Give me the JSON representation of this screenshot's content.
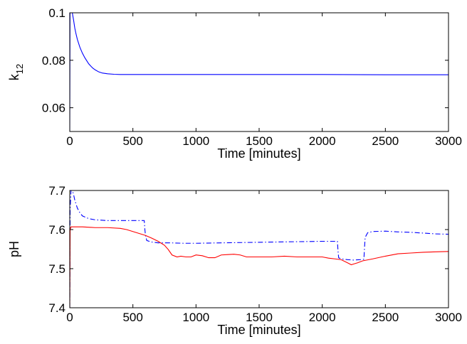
{
  "chart_data": [
    {
      "type": "line",
      "xlabel": "Time [minutes]",
      "ylabel": "k",
      "ylabel_sub": "12",
      "xlim": [
        0,
        3000
      ],
      "ylim": [
        0.05,
        0.1
      ],
      "xticks": [
        0,
        500,
        1000,
        1500,
        2000,
        2500,
        3000
      ],
      "xtick_labels": [
        "0",
        "500",
        "1000",
        "1500",
        "2000",
        "2500",
        "3000"
      ],
      "yticks": [
        0.06,
        0.08,
        0.1
      ],
      "ytick_labels": [
        "0.06",
        "0.08",
        "0.1"
      ],
      "grid": false,
      "series": [
        {
          "color": "#0000ff",
          "style": "solid",
          "x": [
            0,
            2,
            5,
            10,
            20,
            30,
            40,
            50,
            60,
            80,
            100,
            120,
            150,
            180,
            200,
            230,
            260,
            300,
            350,
            400,
            500,
            1000,
            1500,
            2000,
            2500,
            3000
          ],
          "y": [
            0.05,
            0.1,
            0.1,
            0.1,
            0.1,
            0.097,
            0.0935,
            0.091,
            0.0888,
            0.0855,
            0.083,
            0.081,
            0.0785,
            0.0768,
            0.076,
            0.0751,
            0.0746,
            0.0743,
            0.0741,
            0.074,
            0.074,
            0.074,
            0.074,
            0.074,
            0.0739,
            0.0739
          ]
        }
      ]
    },
    {
      "type": "line",
      "xlabel": "Time [minutes]",
      "ylabel": "pH",
      "xlim": [
        0,
        3000
      ],
      "ylim": [
        7.4,
        7.7
      ],
      "xticks": [
        0,
        500,
        1000,
        1500,
        2000,
        2500,
        3000
      ],
      "xtick_labels": [
        "0",
        "500",
        "1000",
        "1500",
        "2000",
        "2500",
        "3000"
      ],
      "yticks": [
        7.4,
        7.5,
        7.6,
        7.7
      ],
      "ytick_labels": [
        "7.4",
        "7.5",
        "7.6",
        "7.7"
      ],
      "grid": false,
      "series": [
        {
          "color": "#0000ff",
          "style": "dash-dot",
          "x": [
            0,
            3,
            10,
            20,
            30,
            40,
            60,
            80,
            100,
            150,
            200,
            300,
            400,
            500,
            590,
            595,
            600,
            610,
            650,
            700,
            800,
            900,
            1000,
            1200,
            1400,
            1600,
            1800,
            2000,
            2120,
            2125,
            2130,
            2150,
            2200,
            2250,
            2300,
            2330,
            2335,
            2340,
            2360,
            2400,
            2500,
            2600,
            2700,
            2800,
            2900,
            3000
          ],
          "y": [
            7.4,
            7.65,
            7.7,
            7.7,
            7.69,
            7.675,
            7.655,
            7.643,
            7.635,
            7.628,
            7.625,
            7.623,
            7.623,
            7.623,
            7.623,
            7.6,
            7.585,
            7.572,
            7.568,
            7.566,
            7.566,
            7.565,
            7.565,
            7.566,
            7.567,
            7.568,
            7.569,
            7.57,
            7.57,
            7.545,
            7.528,
            7.525,
            7.523,
            7.522,
            7.523,
            7.524,
            7.555,
            7.58,
            7.592,
            7.595,
            7.596,
            7.594,
            7.593,
            7.591,
            7.589,
            7.588
          ]
        },
        {
          "color": "#ff0000",
          "style": "solid",
          "x": [
            0,
            3,
            10,
            30,
            100,
            200,
            300,
            400,
            450,
            500,
            550,
            600,
            650,
            700,
            750,
            780,
            810,
            850,
            880,
            920,
            960,
            1000,
            1050,
            1100,
            1150,
            1200,
            1250,
            1300,
            1350,
            1400,
            1450,
            1500,
            1600,
            1700,
            1800,
            1900,
            2000,
            2050,
            2100,
            2150,
            2200,
            2230,
            2250,
            2280,
            2320,
            2400,
            2500,
            2600,
            2700,
            2800,
            2900,
            3000
          ],
          "y": [
            7.4,
            7.6,
            7.607,
            7.607,
            7.607,
            7.605,
            7.605,
            7.603,
            7.6,
            7.595,
            7.59,
            7.585,
            7.578,
            7.57,
            7.56,
            7.549,
            7.535,
            7.53,
            7.532,
            7.53,
            7.53,
            7.535,
            7.533,
            7.528,
            7.528,
            7.535,
            7.536,
            7.537,
            7.535,
            7.53,
            7.53,
            7.53,
            7.53,
            7.532,
            7.53,
            7.53,
            7.53,
            7.527,
            7.525,
            7.523,
            7.515,
            7.51,
            7.512,
            7.515,
            7.52,
            7.525,
            7.532,
            7.538,
            7.54,
            7.542,
            7.543,
            7.544
          ]
        }
      ]
    }
  ]
}
